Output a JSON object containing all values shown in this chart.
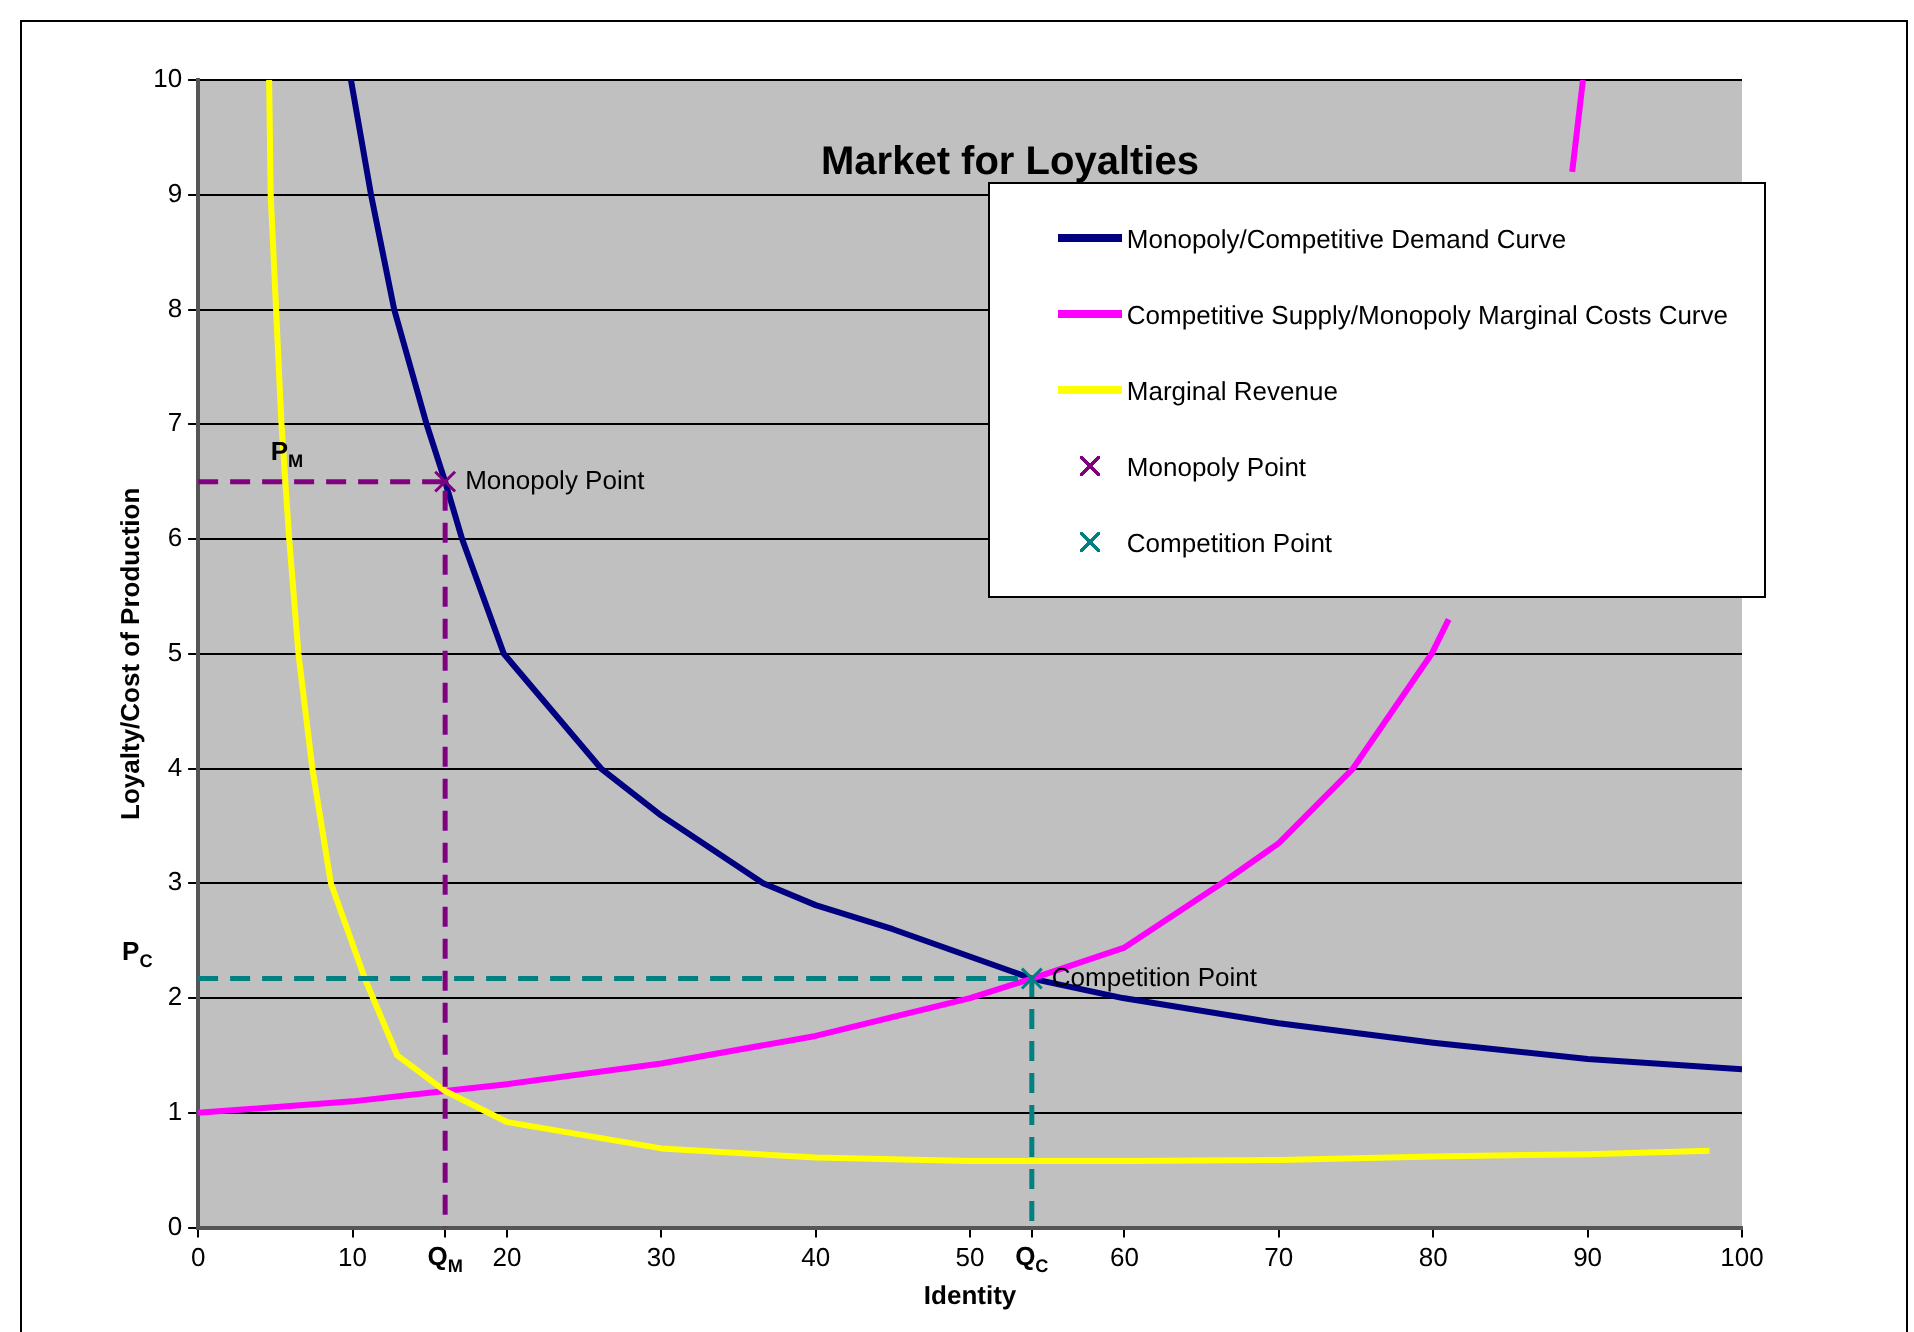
{
  "chart_data": {
    "type": "line",
    "title": "Market for Loyalties",
    "xlabel": "Identity",
    "ylabel": "Loyalty/Cost of Production",
    "xlim": [
      0,
      100
    ],
    "ylim": [
      0,
      10
    ],
    "xticks": [
      0,
      10,
      {
        "value": 16,
        "label": "Q$_{M}$"
      },
      20,
      30,
      40,
      50,
      {
        "value": 54,
        "label": "Q$_{C}$"
      },
      60,
      70,
      80,
      90,
      100
    ],
    "yticks": [
      0,
      1,
      2,
      3,
      4,
      5,
      6,
      7,
      8,
      9,
      10
    ],
    "grid": "y",
    "legend": "top right",
    "marker": "none",
    "series": [
      {
        "name": "Monopoly/Competitive Demand Curve",
        "type": "line",
        "color": "#000080",
        "x": [
          9.9,
          11.2,
          12.7,
          14.8,
          16,
          17.1,
          19.8,
          26.1,
          30,
          36.6,
          40,
          45,
          54,
          59.9,
          70,
          80,
          90,
          100
        ],
        "values": [
          10,
          9,
          8,
          7,
          6.5,
          6,
          5,
          4,
          3.59,
          3,
          2.81,
          2.6,
          2.17,
          2,
          1.78,
          1.61,
          1.47,
          1.38
        ]
      },
      {
        "name": "Competitive Supply/Monopoly Marginal Costs Curve",
        "type": "line",
        "color": "#ff00ff",
        "x": [
          0,
          10,
          16,
          20,
          30,
          40,
          50,
          54,
          60,
          66.3,
          70,
          74.8,
          79.9,
          81,
          85,
          89,
          89.7
        ],
        "values": [
          1,
          1.1,
          1.19,
          1.25,
          1.43,
          1.67,
          2,
          2.17,
          2.44,
          3,
          3.35,
          4,
          5,
          5.3,
          null,
          9.2,
          10
        ]
      },
      {
        "name": "Marginal Revenue",
        "type": "line",
        "color": "#ffff00",
        "x": [
          4.6,
          4.7,
          5.4,
          5.9,
          6.5,
          7.4,
          8.6,
          10.8,
          12.9,
          16,
          20,
          30,
          40,
          50,
          60,
          70,
          80,
          90,
          97.9
        ],
        "values": [
          10,
          9,
          7,
          6,
          5,
          4,
          3,
          2.17,
          1.5,
          1.19,
          0.92,
          0.69,
          0.61,
          0.58,
          0.58,
          0.59,
          0.62,
          0.64,
          0.67
        ]
      },
      {
        "type": "line",
        "line_style": "dashed",
        "color": "#800080",
        "x": [
          0,
          16,
          16
        ],
        "values": [
          6.5,
          6.5,
          0
        ]
      },
      {
        "type": "line",
        "line_style": "dashed",
        "color": "#008080",
        "x": [
          0,
          54,
          54
        ],
        "values": [
          2.17,
          2.17,
          0
        ]
      },
      {
        "name": "Monopoly Point",
        "type": "scatter",
        "marker": "cross",
        "color": "#800080",
        "x": [
          16
        ],
        "values": [
          6.5
        ]
      },
      {
        "name": "Competition Point",
        "type": "scatter",
        "marker": "cross",
        "color": "#008080",
        "x": [
          54
        ],
        "values": [
          2.17
        ]
      }
    ],
    "annotations": [
      {
        "text": "P$_{M}$",
        "x": 4.7,
        "y": 6.75
      },
      {
        "text": "P$_{C}$",
        "x": 0,
        "y": 2.17
      },
      {
        "text": "Monopoly Point",
        "x": 16,
        "y": 6.5
      },
      {
        "text": "Competition Point",
        "x": 54,
        "y": 2.17
      }
    ]
  }
}
